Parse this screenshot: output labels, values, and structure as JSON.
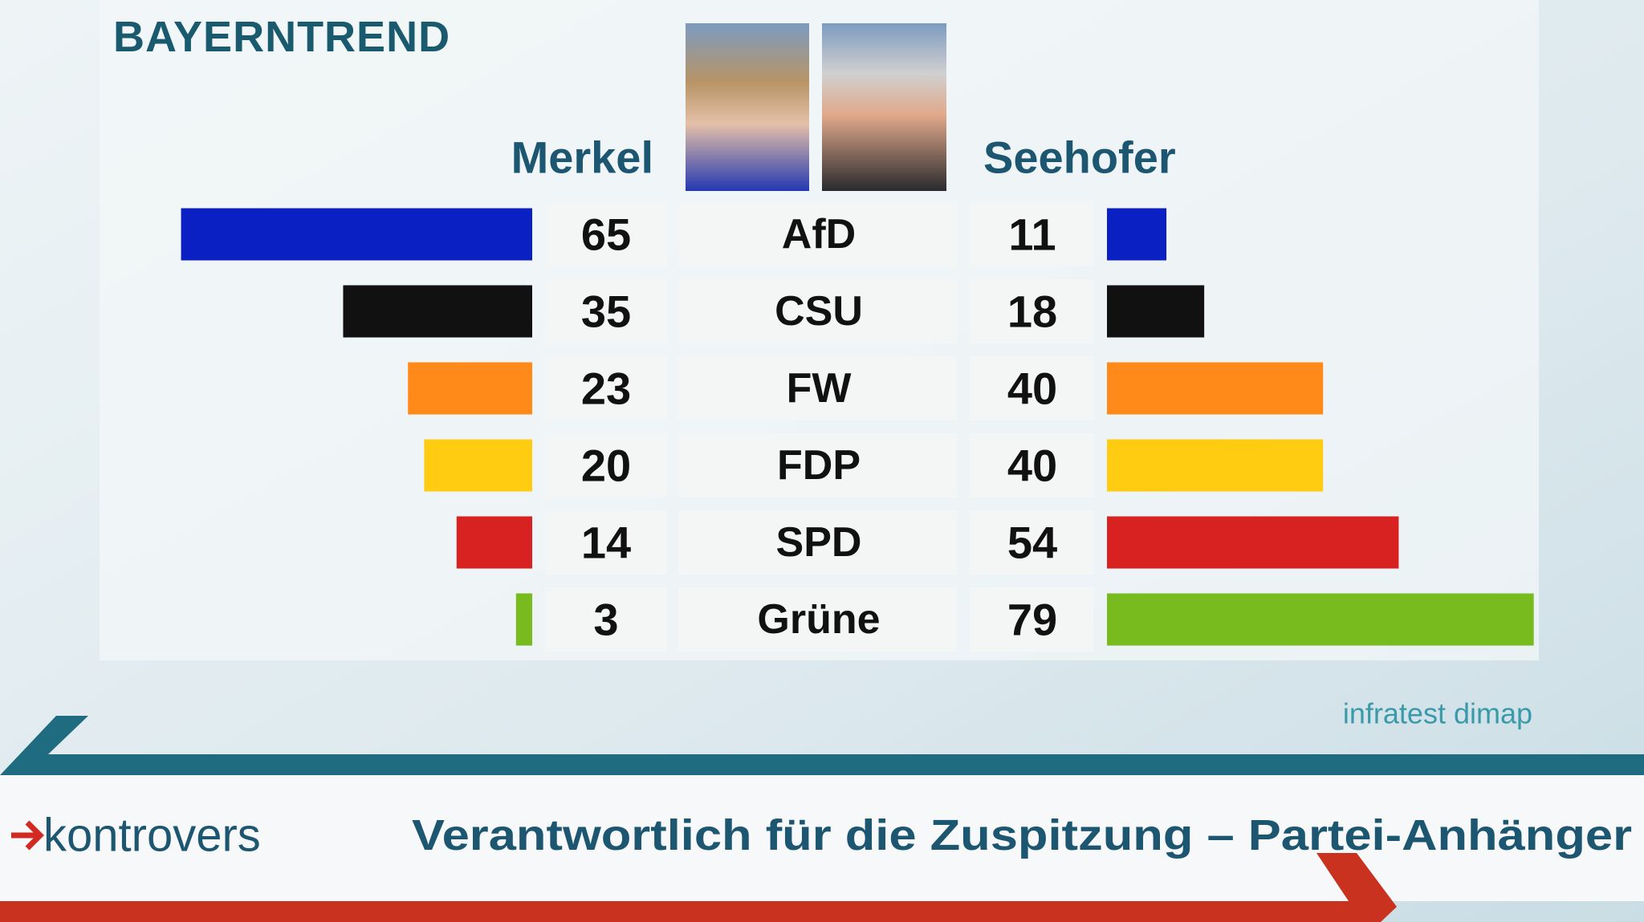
{
  "chart_data": {
    "type": "butterfly",
    "title": "BAYERNTREND",
    "subtitle": "Verantwortlich für die Zuspitzung – Partei-Anhänger",
    "source": "infratest dimap",
    "categories": [
      "AfD",
      "CSU",
      "FW",
      "FDP",
      "SPD",
      "Grüne"
    ],
    "colors": [
      "#0b20c2",
      "#111111",
      "#ff8a1a",
      "#ffcc11",
      "#d82222",
      "#78bb1e"
    ],
    "series": [
      {
        "name": "Merkel",
        "values": [
          65,
          35,
          23,
          20,
          14,
          3
        ]
      },
      {
        "name": "Seehofer",
        "values": [
          11,
          18,
          40,
          40,
          54,
          79
        ]
      }
    ]
  },
  "program": "kontrovers"
}
